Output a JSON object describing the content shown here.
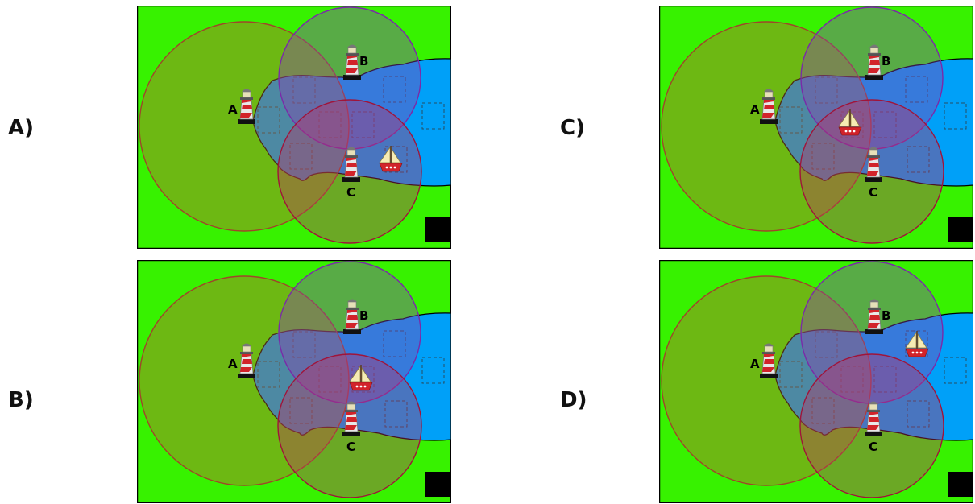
{
  "colors": {
    "land": "#37f200",
    "sea_light": "#00a0f8",
    "sea_dark": "#1a67e8",
    "border": "#000000",
    "circle_a_fill": "#b86a2e",
    "circle_a_stroke": "#a0452a",
    "circle_b_fill": "#8a40b0",
    "circle_b_stroke": "#7a2aa8",
    "circle_c_fill": "#c03060",
    "circle_c_stroke": "#a0143a"
  },
  "lighthouse_labels": {
    "a": "A",
    "b": "B",
    "c": "C"
  },
  "icons": {
    "lighthouse": "lighthouse-icon",
    "ship": "sailboat-icon",
    "zone": "dashed-square-zone"
  },
  "options": [
    {
      "label": "A)",
      "ship_zone": "right of C, outside B"
    },
    {
      "label": "B)",
      "ship_zone": "intersection of B and C"
    },
    {
      "label": "C)",
      "ship_zone": "intersection of A, B and C"
    },
    {
      "label": "D)",
      "ship_zone": "inside B only, east"
    }
  ]
}
